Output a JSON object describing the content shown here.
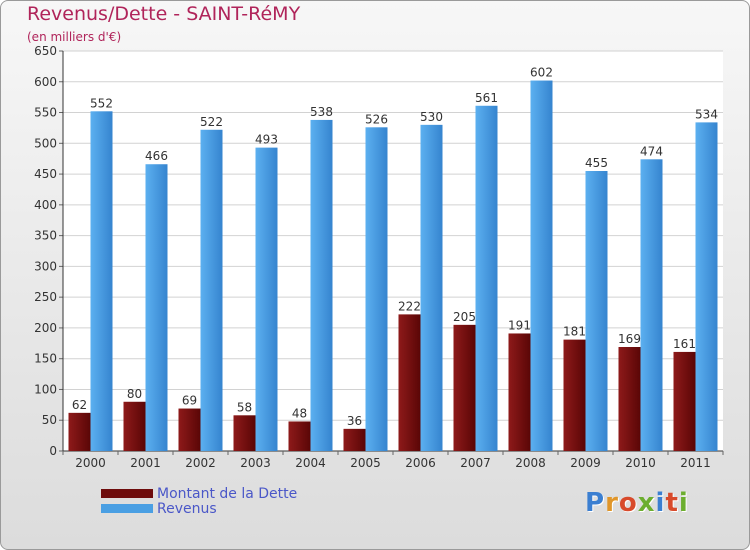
{
  "header": {
    "title": "Revenus/Dette - SAINT-RéMY",
    "subtitle": "(en milliers d'€)"
  },
  "legend": {
    "items": [
      {
        "label": "Montant de la Dette",
        "color": "#6e0c0c"
      },
      {
        "label": "Revenus",
        "color": "#4a9fe3"
      }
    ]
  },
  "logo": {
    "text": "Proxiti"
  },
  "chart_data": {
    "type": "bar",
    "title": "Revenus/Dette - SAINT-RéMY",
    "ylabel": "(en milliers d'€)",
    "xlabel": "",
    "categories": [
      "2000",
      "2001",
      "2002",
      "2003",
      "2004",
      "2005",
      "2006",
      "2007",
      "2008",
      "2009",
      "2010",
      "2011"
    ],
    "series": [
      {
        "name": "Montant de la Dette",
        "color": "#6e0c0c",
        "values": [
          62,
          80,
          69,
          58,
          48,
          36,
          222,
          205,
          191,
          181,
          169,
          161
        ]
      },
      {
        "name": "Revenus",
        "color": "#4a9fe3",
        "values": [
          552,
          466,
          522,
          493,
          538,
          526,
          530,
          561,
          602,
          455,
          474,
          534
        ]
      }
    ],
    "ylim": [
      0,
      650
    ],
    "yticks": [
      0,
      50,
      100,
      150,
      200,
      250,
      300,
      350,
      400,
      450,
      500,
      550,
      600,
      650
    ],
    "grid": true,
    "legend_position": "bottom-left"
  }
}
